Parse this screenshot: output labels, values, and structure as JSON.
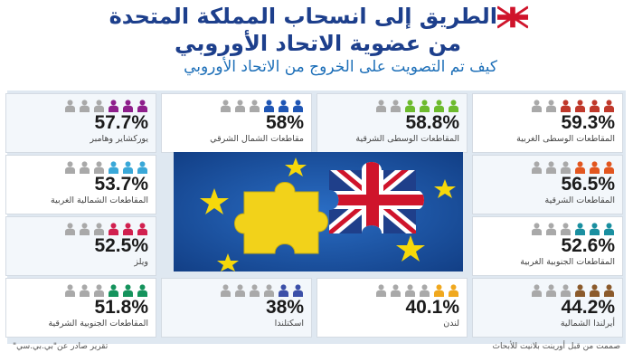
{
  "header": {
    "title_line1": "الطريق إلى انسحاب المملكة المتحدة",
    "title_line2": "من عضوية الاتحاد الأوروبي",
    "subtitle": "كيف تم التصويت على الخروج من الاتحاد الأوروبي"
  },
  "cards": [
    {
      "pct": "59.3%",
      "region": "المقاطعات الوسطى الغربية",
      "color": "#c0392b"
    },
    {
      "pct": "58.8%",
      "region": "المقاطعات الوسطى الشرقية",
      "color": "#6dbb2e"
    },
    {
      "pct": "58%",
      "region": "مقاطعات الشمال الشرقي",
      "color": "#1f56b5"
    },
    {
      "pct": "57.7%",
      "region": "يوركشاير وهامبر",
      "color": "#8e1f8c"
    },
    {
      "pct": "56.5%",
      "region": "المقاطعات الشرقية",
      "color": "#e2561f"
    },
    {
      "pct": "53.7%",
      "region": "المقاطعات الشمالية الغربية",
      "color": "#3aa8d8"
    },
    {
      "pct": "52.6%",
      "region": "المقاطعات الجنوبية الغربية",
      "color": "#1a8fa0"
    },
    {
      "pct": "52.5%",
      "region": "ويلز",
      "color": "#d1204f"
    },
    {
      "pct": "44.2%",
      "region": "أيرلندا الشمالية",
      "color": "#8b5a2b"
    },
    {
      "pct": "40.1%",
      "region": "لندن",
      "color": "#f0a81e"
    },
    {
      "pct": "38%",
      "region": "اسكتلندا",
      "color": "#3b4fa8"
    },
    {
      "pct": "51.8%",
      "region": "المقاطعات الجنوبية الشرقية",
      "color": "#15935c"
    }
  ],
  "footer": {
    "left": "تقرير صادر عن\"بي.بي.سي\"",
    "right": "صممت من قبل أورينت بلانيت للأبحاث"
  },
  "colors": {
    "title": "#1d3f8c",
    "subtitle": "#1d6fb8",
    "panel": "#dfe8f1",
    "people_gray": "#a9a9a9"
  },
  "icons": {
    "flag": "uk-flag-icon",
    "person": "person-icon",
    "puzzle": "puzzle-illustration"
  }
}
